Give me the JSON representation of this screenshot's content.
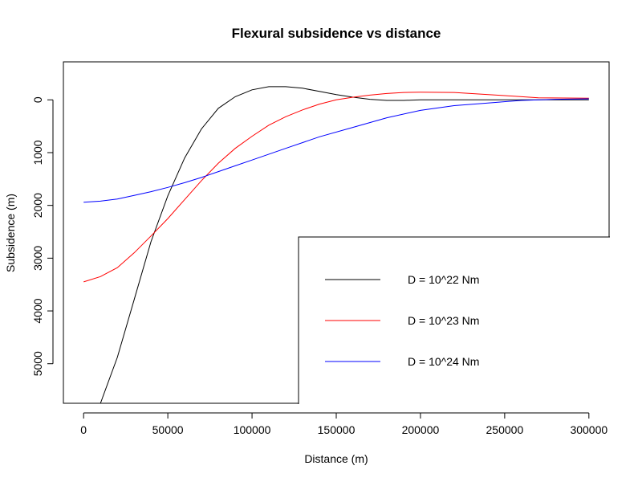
{
  "chart_data": {
    "type": "line",
    "title": "Flexural subsidence vs distance",
    "xlabel": "Distance (m)",
    "ylabel": "Subsidence (m)",
    "xlim": [
      -12000,
      312000
    ],
    "ylim": [
      5750,
      -720
    ],
    "y_axis_reversed": true,
    "grid": false,
    "legend_placement": "bottom-right",
    "x_ticks": [
      0,
      50000,
      100000,
      150000,
      200000,
      250000,
      300000
    ],
    "x_tick_labels": [
      "0",
      "50000",
      "100000",
      "150000",
      "200000",
      "250000",
      "300000"
    ],
    "y_ticks": [
      0,
      1000,
      2000,
      3000,
      4000,
      5000
    ],
    "y_tick_labels": [
      "0",
      "1000",
      "2000",
      "3000",
      "4000",
      "5000"
    ],
    "series": [
      {
        "name": "D = 10^22 Nm",
        "color": "#000000",
        "x": [
          10000,
          20000,
          30000,
          40000,
          50000,
          60000,
          70000,
          80000,
          90000,
          100000,
          110000,
          120000,
          130000,
          140000,
          150000,
          160000,
          170000,
          180000,
          190000,
          200000,
          220000,
          250000,
          300000
        ],
        "y": [
          5750,
          4880,
          3790,
          2690,
          1820,
          1100,
          550,
          160,
          -60,
          -190,
          -250,
          -250,
          -220,
          -160,
          -100,
          -50,
          -10,
          10,
          10,
          0,
          0,
          0,
          0
        ]
      },
      {
        "name": "D = 10^23 Nm",
        "color": "#ff0000",
        "x": [
          0,
          10000,
          20000,
          30000,
          40000,
          50000,
          60000,
          70000,
          80000,
          90000,
          100000,
          110000,
          120000,
          130000,
          140000,
          150000,
          160000,
          170000,
          180000,
          190000,
          200000,
          220000,
          250000,
          270000,
          300000
        ],
        "y": [
          3450,
          3350,
          3180,
          2900,
          2580,
          2250,
          1890,
          1530,
          1200,
          920,
          690,
          480,
          320,
          190,
          80,
          0,
          -50,
          -90,
          -120,
          -140,
          -145,
          -140,
          -80,
          -40,
          -30
        ]
      },
      {
        "name": "D = 10^24 Nm",
        "color": "#0000ff",
        "x": [
          0,
          10000,
          20000,
          30000,
          40000,
          50000,
          60000,
          70000,
          80000,
          90000,
          100000,
          120000,
          140000,
          160000,
          180000,
          200000,
          220000,
          240000,
          260000,
          280000,
          300000
        ],
        "y": [
          1940,
          1920,
          1880,
          1810,
          1740,
          1660,
          1570,
          1470,
          1360,
          1250,
          1140,
          920,
          700,
          520,
          340,
          200,
          110,
          60,
          10,
          -10,
          -20
        ]
      }
    ]
  }
}
